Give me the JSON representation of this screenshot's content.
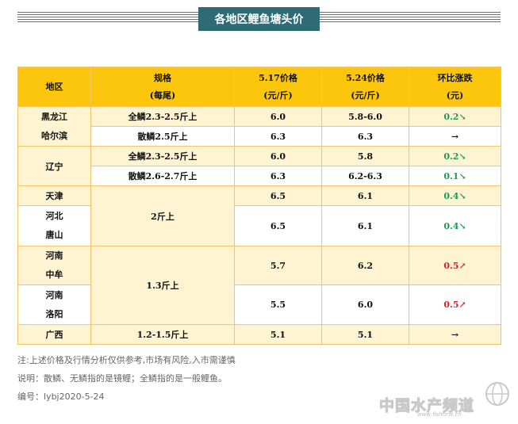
{
  "title": "各地区鲤鱼塘头价",
  "table": {
    "headers": {
      "region": "地区",
      "spec_line1": "规格",
      "spec_line2": "(每尾)",
      "price1_line1": "5.17价格",
      "price1_line2": "(元/斤)",
      "price2_line1": "5.24价格",
      "price2_line2": "(元/斤)",
      "change_line1": "环比涨跌",
      "change_line2": "(元)"
    },
    "rows": [
      {
        "region": [
          "黑龙江",
          "哈尔滨"
        ],
        "spec": "全鳞2.3-2.5斤上",
        "p1": "6.0",
        "p2": "5.8-6.0",
        "change": "0.2",
        "arrow": "↘",
        "dir": "down"
      },
      {
        "spec": "散鳞2.5斤上",
        "p1": "6.3",
        "p2": "6.3",
        "change": "",
        "arrow": "→",
        "dir": "flat"
      },
      {
        "region": [
          "辽宁"
        ],
        "spec": "全鳞2.3-2.5斤上",
        "p1": "6.0",
        "p2": "5.8",
        "change": "0.2",
        "arrow": "↘",
        "dir": "down"
      },
      {
        "spec": "散鳞2.6-2.7斤上",
        "p1": "6.3",
        "p2": "6.2-6.3",
        "change": "0.1",
        "arrow": "↘",
        "dir": "down"
      },
      {
        "region": [
          "天津"
        ],
        "spec": "2斤上",
        "p1": "6.5",
        "p2": "6.1",
        "change": "0.4",
        "arrow": "↘",
        "dir": "down"
      },
      {
        "region": [
          "河北",
          "唐山"
        ],
        "p1": "6.5",
        "p2": "6.1",
        "change": "0.4",
        "arrow": "↘",
        "dir": "down"
      },
      {
        "region": [
          "河南",
          "中牟"
        ],
        "spec": "1.3斤上",
        "p1": "5.7",
        "p2": "6.2",
        "change": "0.5",
        "arrow": "↗",
        "dir": "up"
      },
      {
        "region": [
          "河南",
          "洛阳"
        ],
        "p1": "5.5",
        "p2": "6.0",
        "change": "0.5",
        "arrow": "↗",
        "dir": "up"
      },
      {
        "region": [
          "广西"
        ],
        "spec": "1.2-1.5斤上",
        "p1": "5.1",
        "p2": "5.1",
        "change": "",
        "arrow": "→",
        "dir": "flat"
      }
    ]
  },
  "notes": [
    "注:上述价格及行情分析仅供参考,市场有风险,入市需谨慎",
    "说明：散鳞、无鳞指的是镜鲤；全鳞指的是一般鲤鱼。",
    "编号：lybj2020-5-24"
  ],
  "watermark": {
    "text": "中国水产频道",
    "url": "www.fishfirst.cn"
  },
  "colors": {
    "title_bg": "#2e6b73",
    "header_bg": "#fbc60c",
    "row_tint": "#fff4d2",
    "border": "#f3c56b",
    "up": "#d8232a",
    "down": "#1e9a56"
  }
}
